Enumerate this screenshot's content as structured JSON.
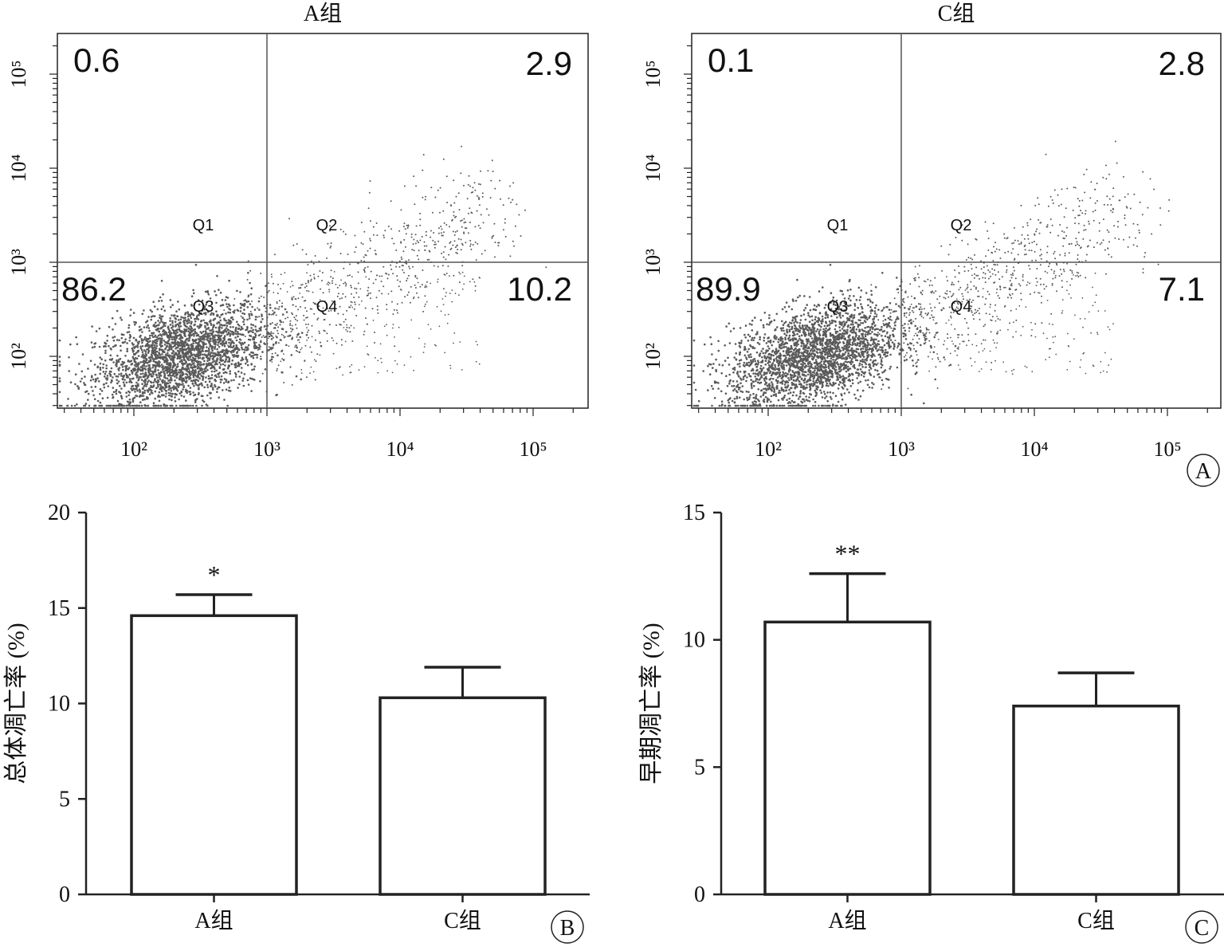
{
  "colors": {
    "axis": "#222222",
    "quad_line": "#555555",
    "dots": "#5a5a5a",
    "bar_fill": "#ffffff"
  },
  "chart_data": [
    {
      "type": "scatter",
      "panel": "A",
      "title": "A组",
      "xscale": "log",
      "yscale": "log",
      "x_ticks": [
        "10²",
        "10³",
        "10⁴",
        "10⁵"
      ],
      "y_ticks": [
        "10²",
        "10³",
        "10⁴",
        "10⁵"
      ],
      "gates": {
        "x": 1000,
        "y": 1000
      },
      "quadrants": [
        {
          "name": "Q1",
          "percent": "0.6"
        },
        {
          "name": "Q2",
          "percent": "2.9"
        },
        {
          "name": "Q3",
          "percent": "86.2"
        },
        {
          "name": "Q4",
          "percent": "10.2"
        }
      ]
    },
    {
      "type": "scatter",
      "panel": "A",
      "title": "C组",
      "xscale": "log",
      "yscale": "log",
      "x_ticks": [
        "10²",
        "10³",
        "10⁴",
        "10⁵"
      ],
      "y_ticks": [
        "10²",
        "10³",
        "10⁴",
        "10⁵"
      ],
      "gates": {
        "x": 1000,
        "y": 1000
      },
      "quadrants": [
        {
          "name": "Q1",
          "percent": "0.1"
        },
        {
          "name": "Q2",
          "percent": "2.8"
        },
        {
          "name": "Q3",
          "percent": "89.9"
        },
        {
          "name": "Q4",
          "percent": "7.1"
        }
      ]
    },
    {
      "type": "bar",
      "panel": "B",
      "categories": [
        "A组",
        "C组"
      ],
      "values": [
        14.6,
        10.3
      ],
      "errors": [
        1.1,
        1.6
      ],
      "significance": [
        "*",
        ""
      ],
      "ylabel": "总体凋亡率 (%)",
      "ylim": [
        0,
        20
      ],
      "yticks": [
        0,
        5,
        10,
        15,
        20
      ]
    },
    {
      "type": "bar",
      "panel": "C",
      "categories": [
        "A组",
        "C组"
      ],
      "values": [
        10.7,
        7.4
      ],
      "errors": [
        1.9,
        1.3
      ],
      "significance": [
        "**",
        ""
      ],
      "ylabel": "早期凋亡率 (%)",
      "ylim": [
        0,
        15
      ],
      "yticks": [
        0,
        5,
        10,
        15
      ]
    }
  ],
  "panel_labels": [
    "A",
    "B",
    "C"
  ]
}
